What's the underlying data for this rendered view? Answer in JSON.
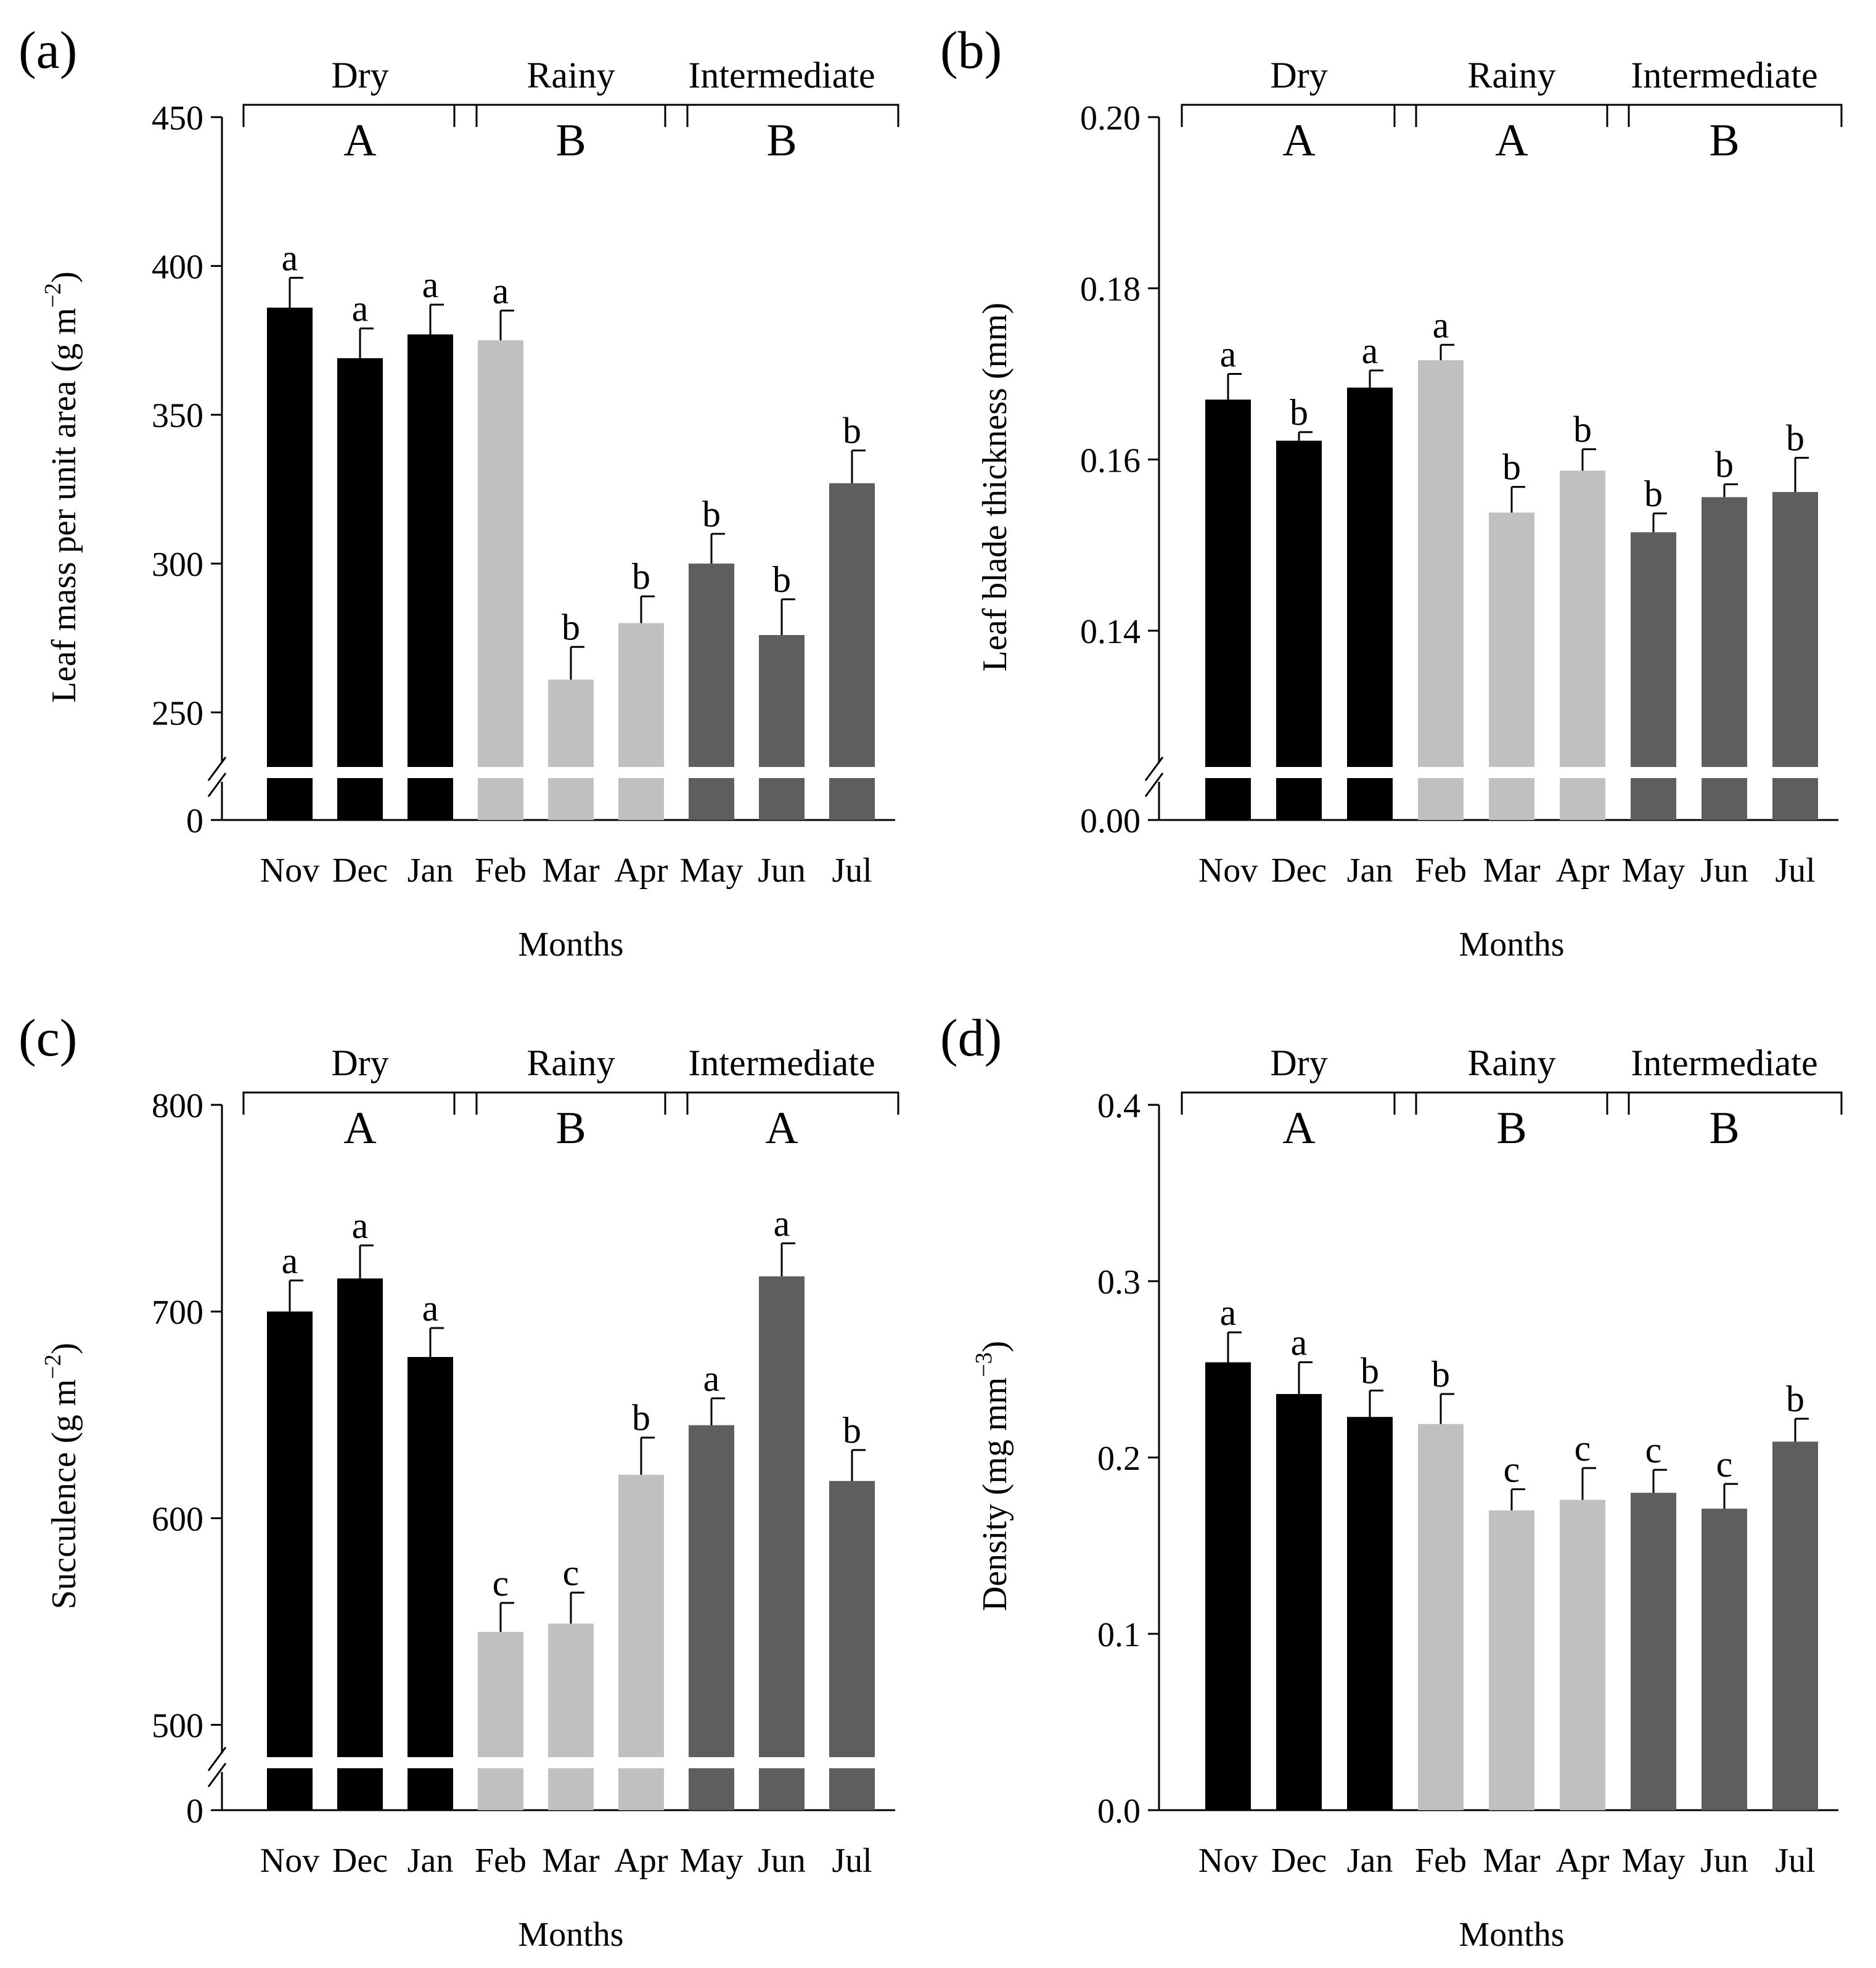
{
  "colors": {
    "dry": "#000000",
    "rainy": "#c0c0c0",
    "intermediate": "#5e5e5e",
    "background": "#ffffff"
  },
  "chart_data": [
    {
      "panel": "(a)",
      "type": "bar",
      "xlabel": "Months",
      "ylabel_prefix": "Leaf mass per unit area (g m",
      "ylabel_sup": "−2",
      "ylabel_suffix": ")",
      "categories": [
        "Nov",
        "Dec",
        "Jan",
        "Feb",
        "Mar",
        "Apr",
        "May",
        "Jun",
        "Jul"
      ],
      "season_of_category": [
        "dry",
        "dry",
        "dry",
        "rainy",
        "rainy",
        "rainy",
        "intermediate",
        "intermediate",
        "intermediate"
      ],
      "values": [
        386,
        369,
        377,
        375,
        261,
        280,
        300,
        276,
        327
      ],
      "errors": [
        10,
        10,
        10,
        10,
        11,
        9,
        10,
        12,
        11
      ],
      "letters": [
        "a",
        "a",
        "a",
        "a",
        "b",
        "b",
        "b",
        "b",
        "b"
      ],
      "seasons": [
        {
          "name": "Dry",
          "group": "A"
        },
        {
          "name": "Rainy",
          "group": "B"
        },
        {
          "name": "Intermediate",
          "group": "B"
        }
      ],
      "ylim": [
        230,
        450
      ],
      "broken_axis": true,
      "yticks": [
        250,
        300,
        350,
        400,
        450
      ],
      "ytick_labels": [
        "250",
        "300",
        "350",
        "400",
        "450"
      ],
      "zero_label": "0"
    },
    {
      "panel": "(b)",
      "type": "bar",
      "xlabel": "Months",
      "ylabel_prefix": "Leaf blade thickness (mm)",
      "ylabel_sup": "",
      "ylabel_suffix": "",
      "categories": [
        "Nov",
        "Dec",
        "Jan",
        "Feb",
        "Mar",
        "Apr",
        "May",
        "Jun",
        "Jul"
      ],
      "season_of_category": [
        "dry",
        "dry",
        "dry",
        "rainy",
        "rainy",
        "rainy",
        "intermediate",
        "intermediate",
        "intermediate"
      ],
      "values": [
        0.167,
        0.1622,
        0.1684,
        0.1716,
        0.1538,
        0.1587,
        0.1515,
        0.1556,
        0.1562
      ],
      "errors": [
        0.003,
        0.001,
        0.002,
        0.0018,
        0.003,
        0.0025,
        0.0022,
        0.0015,
        0.004
      ],
      "letters": [
        "a",
        "b",
        "a",
        "a",
        "b",
        "b",
        "b",
        "b",
        "b"
      ],
      "seasons": [
        {
          "name": "Dry",
          "group": "A"
        },
        {
          "name": "Rainy",
          "group": "A"
        },
        {
          "name": "Intermediate",
          "group": "B"
        }
      ],
      "ylim": [
        0.1235,
        0.2
      ],
      "broken_axis": true,
      "yticks": [
        0.14,
        0.16,
        0.18,
        0.2
      ],
      "ytick_labels": [
        "0.14",
        "0.16",
        "0.18",
        "0.20"
      ],
      "zero_label": "0.00"
    },
    {
      "panel": "(c)",
      "type": "bar",
      "xlabel": "Months",
      "ylabel_prefix": "Succulence (g m",
      "ylabel_sup": "−2",
      "ylabel_suffix": ")",
      "categories": [
        "Nov",
        "Dec",
        "Jan",
        "Feb",
        "Mar",
        "Apr",
        "May",
        "Jun",
        "Jul"
      ],
      "season_of_category": [
        "dry",
        "dry",
        "dry",
        "rainy",
        "rainy",
        "rainy",
        "intermediate",
        "intermediate",
        "intermediate"
      ],
      "values": [
        700,
        716,
        678,
        545,
        549,
        621,
        645,
        717,
        618
      ],
      "errors": [
        15,
        16,
        14,
        14,
        15,
        18,
        13,
        16,
        15
      ],
      "letters": [
        "a",
        "a",
        "a",
        "c",
        "c",
        "b",
        "a",
        "a",
        "b"
      ],
      "seasons": [
        {
          "name": "Dry",
          "group": "A"
        },
        {
          "name": "Rainy",
          "group": "B"
        },
        {
          "name": "Intermediate",
          "group": "A"
        }
      ],
      "ylim": [
        482,
        800
      ],
      "broken_axis": true,
      "yticks": [
        500,
        600,
        700,
        800
      ],
      "ytick_labels": [
        "500",
        "600",
        "700",
        "800"
      ],
      "zero_label": "0"
    },
    {
      "panel": "(d)",
      "type": "bar",
      "xlabel": "Months",
      "ylabel_prefix": "Density (mg mm",
      "ylabel_sup": "−3",
      "ylabel_suffix": ")",
      "categories": [
        "Nov",
        "Dec",
        "Jan",
        "Feb",
        "Mar",
        "Apr",
        "May",
        "Jun",
        "Jul"
      ],
      "season_of_category": [
        "dry",
        "dry",
        "dry",
        "rainy",
        "rainy",
        "rainy",
        "intermediate",
        "intermediate",
        "intermediate"
      ],
      "values": [
        0.254,
        0.236,
        0.223,
        0.219,
        0.17,
        0.176,
        0.18,
        0.171,
        0.209
      ],
      "errors": [
        0.017,
        0.018,
        0.015,
        0.017,
        0.012,
        0.018,
        0.013,
        0.014,
        0.013
      ],
      "letters": [
        "a",
        "a",
        "b",
        "b",
        "c",
        "c",
        "c",
        "c",
        "b"
      ],
      "seasons": [
        {
          "name": "Dry",
          "group": "A"
        },
        {
          "name": "Rainy",
          "group": "B"
        },
        {
          "name": "Intermediate",
          "group": "B"
        }
      ],
      "ylim": [
        0,
        0.4
      ],
      "broken_axis": false,
      "yticks": [
        0.0,
        0.1,
        0.2,
        0.3,
        0.4
      ],
      "ytick_labels": [
        "0.0",
        "0.1",
        "0.2",
        "0.3",
        "0.4"
      ],
      "zero_label": ""
    }
  ]
}
